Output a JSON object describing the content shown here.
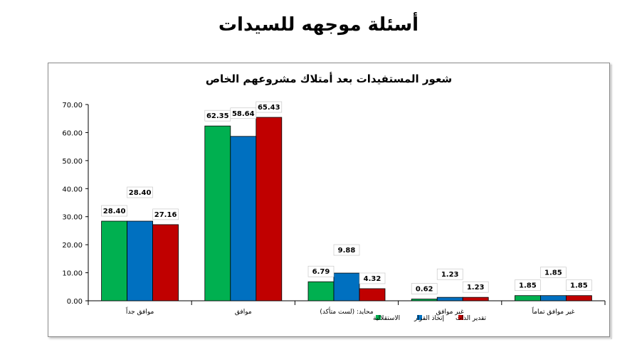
{
  "slide": {
    "title": "أسئلة موجهه للسيدات"
  },
  "colors": {
    "green": "#00B050",
    "blue": "#0070C0",
    "red": "#C00000"
  },
  "chart_data": {
    "type": "bar",
    "title": "شعور المستفيدات بعد أمتلاك مشروعهم الخاص",
    "categories": [
      "موافق جداً",
      "موافق",
      "محايد: (لست متأكد)",
      "غير موافق",
      "غير موافق تماماً"
    ],
    "series": [
      {
        "name": "الاستقلالية",
        "color": "#00B050",
        "values": [
          28.4,
          62.35,
          6.79,
          0.62,
          1.85
        ],
        "labels": [
          "28.40",
          "62.35",
          "6.79",
          "0.62",
          "1.85"
        ]
      },
      {
        "name": "إتخاذ القرار",
        "color": "#0070C0",
        "values": [
          28.4,
          58.64,
          9.88,
          1.23,
          1.85
        ],
        "labels": [
          "28.40",
          "58.64",
          "9.88",
          "1.23",
          "1.85"
        ]
      },
      {
        "name": "تقدير الذات",
        "color": "#C00000",
        "values": [
          27.16,
          65.43,
          4.32,
          1.23,
          1.85
        ],
        "labels": [
          "27.16",
          "65.43",
          "4.32",
          "1.23",
          "1.85"
        ]
      }
    ],
    "yticks": [
      "0.00",
      "10.00",
      "20.00",
      "30.00",
      "40.00",
      "50.00",
      "60.00",
      "70.00"
    ],
    "ylim": [
      0,
      70
    ],
    "grid": false,
    "legend": "bottom"
  }
}
